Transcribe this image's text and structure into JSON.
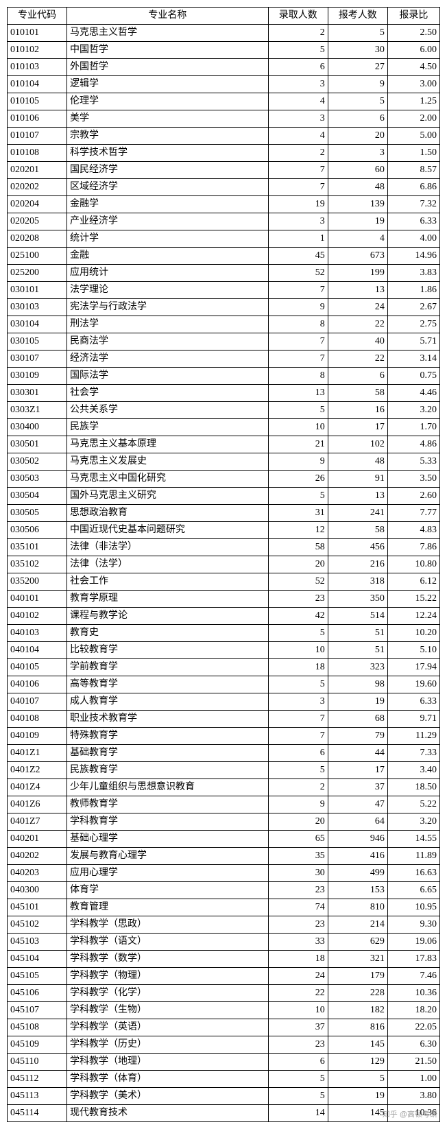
{
  "table": {
    "headers": [
      "专业代码",
      "专业名称",
      "录取人数",
      "报考人数",
      "报录比"
    ],
    "rows": [
      [
        "010101",
        "马克思主义哲学",
        "2",
        "5",
        "2.50"
      ],
      [
        "010102",
        "中国哲学",
        "5",
        "30",
        "6.00"
      ],
      [
        "010103",
        "外国哲学",
        "6",
        "27",
        "4.50"
      ],
      [
        "010104",
        "逻辑学",
        "3",
        "9",
        "3.00"
      ],
      [
        "010105",
        "伦理学",
        "4",
        "5",
        "1.25"
      ],
      [
        "010106",
        "美学",
        "3",
        "6",
        "2.00"
      ],
      [
        "010107",
        "宗教学",
        "4",
        "20",
        "5.00"
      ],
      [
        "010108",
        "科学技术哲学",
        "2",
        "3",
        "1.50"
      ],
      [
        "020201",
        "国民经济学",
        "7",
        "60",
        "8.57"
      ],
      [
        "020202",
        "区域经济学",
        "7",
        "48",
        "6.86"
      ],
      [
        "020204",
        "金融学",
        "19",
        "139",
        "7.32"
      ],
      [
        "020205",
        "产业经济学",
        "3",
        "19",
        "6.33"
      ],
      [
        "020208",
        "统计学",
        "1",
        "4",
        "4.00"
      ],
      [
        "025100",
        "金融",
        "45",
        "673",
        "14.96"
      ],
      [
        "025200",
        "应用统计",
        "52",
        "199",
        "3.83"
      ],
      [
        "030101",
        "法学理论",
        "7",
        "13",
        "1.86"
      ],
      [
        "030103",
        "宪法学与行政法学",
        "9",
        "24",
        "2.67"
      ],
      [
        "030104",
        "刑法学",
        "8",
        "22",
        "2.75"
      ],
      [
        "030105",
        "民商法学",
        "7",
        "40",
        "5.71"
      ],
      [
        "030107",
        "经济法学",
        "7",
        "22",
        "3.14"
      ],
      [
        "030109",
        "国际法学",
        "8",
        "6",
        "0.75"
      ],
      [
        "030301",
        "社会学",
        "13",
        "58",
        "4.46"
      ],
      [
        "0303Z1",
        "公共关系学",
        "5",
        "16",
        "3.20"
      ],
      [
        "030400",
        "民族学",
        "10",
        "17",
        "1.70"
      ],
      [
        "030501",
        "马克思主义基本原理",
        "21",
        "102",
        "4.86"
      ],
      [
        "030502",
        "马克思主义发展史",
        "9",
        "48",
        "5.33"
      ],
      [
        "030503",
        "马克思主义中国化研究",
        "26",
        "91",
        "3.50"
      ],
      [
        "030504",
        "国外马克思主义研究",
        "5",
        "13",
        "2.60"
      ],
      [
        "030505",
        "思想政治教育",
        "31",
        "241",
        "7.77"
      ],
      [
        "030506",
        "中国近现代史基本问题研究",
        "12",
        "58",
        "4.83"
      ],
      [
        "035101",
        "法律（非法学）",
        "58",
        "456",
        "7.86"
      ],
      [
        "035102",
        "法律（法学）",
        "20",
        "216",
        "10.80"
      ],
      [
        "035200",
        "社会工作",
        "52",
        "318",
        "6.12"
      ],
      [
        "040101",
        "教育学原理",
        "23",
        "350",
        "15.22"
      ],
      [
        "040102",
        "课程与教学论",
        "42",
        "514",
        "12.24"
      ],
      [
        "040103",
        "教育史",
        "5",
        "51",
        "10.20"
      ],
      [
        "040104",
        "比较教育学",
        "10",
        "51",
        "5.10"
      ],
      [
        "040105",
        "学前教育学",
        "18",
        "323",
        "17.94"
      ],
      [
        "040106",
        "高等教育学",
        "5",
        "98",
        "19.60"
      ],
      [
        "040107",
        "成人教育学",
        "3",
        "19",
        "6.33"
      ],
      [
        "040108",
        "职业技术教育学",
        "7",
        "68",
        "9.71"
      ],
      [
        "040109",
        "特殊教育学",
        "7",
        "79",
        "11.29"
      ],
      [
        "0401Z1",
        "基础教育学",
        "6",
        "44",
        "7.33"
      ],
      [
        "0401Z2",
        "民族教育学",
        "5",
        "17",
        "3.40"
      ],
      [
        "0401Z4",
        "少年儿童组织与思想意识教育",
        "2",
        "37",
        "18.50"
      ],
      [
        "0401Z6",
        "教师教育学",
        "9",
        "47",
        "5.22"
      ],
      [
        "0401Z7",
        "学科教育学",
        "20",
        "64",
        "3.20"
      ],
      [
        "040201",
        "基础心理学",
        "65",
        "946",
        "14.55"
      ],
      [
        "040202",
        "发展与教育心理学",
        "35",
        "416",
        "11.89"
      ],
      [
        "040203",
        "应用心理学",
        "30",
        "499",
        "16.63"
      ],
      [
        "040300",
        "体育学",
        "23",
        "153",
        "6.65"
      ],
      [
        "045101",
        "教育管理",
        "74",
        "810",
        "10.95"
      ],
      [
        "045102",
        "学科教学（思政）",
        "23",
        "214",
        "9.30"
      ],
      [
        "045103",
        "学科教学（语文）",
        "33",
        "629",
        "19.06"
      ],
      [
        "045104",
        "学科教学（数学）",
        "18",
        "321",
        "17.83"
      ],
      [
        "045105",
        "学科教学（物理）",
        "24",
        "179",
        "7.46"
      ],
      [
        "045106",
        "学科教学（化学）",
        "22",
        "228",
        "10.36"
      ],
      [
        "045107",
        "学科教学（生物）",
        "10",
        "182",
        "18.20"
      ],
      [
        "045108",
        "学科教学（英语）",
        "37",
        "816",
        "22.05"
      ],
      [
        "045109",
        "学科教学（历史）",
        "23",
        "145",
        "6.30"
      ],
      [
        "045110",
        "学科教学（地理）",
        "6",
        "129",
        "21.50"
      ],
      [
        "045112",
        "学科教学（体育）",
        "5",
        "5",
        "1.00"
      ],
      [
        "045113",
        "学科教学（美术）",
        "5",
        "19",
        "3.80"
      ],
      [
        "045114",
        "现代教育技术",
        "14",
        "145",
        "10.36"
      ]
    ]
  },
  "watermark": "知乎 @高顿考研"
}
